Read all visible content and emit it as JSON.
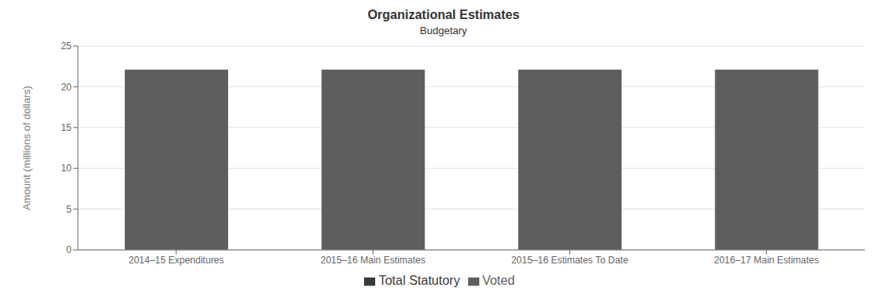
{
  "chart_data": {
    "type": "bar",
    "title": "Organizational Estimates",
    "subtitle": "Budgetary",
    "ylabel": "Amount (millions of dollars)",
    "categories": [
      "2014–15 Expenditures",
      "2015–16 Main Estimates",
      "2015–16 Estimates To Date",
      "2016–17 Main Estimates"
    ],
    "series": [
      {
        "name": "Total Statutory",
        "color": "#3a3a3a",
        "values": [
          0.05,
          0.05,
          0.05,
          0.05
        ]
      },
      {
        "name": "Voted",
        "color": "#5e5e5e",
        "values": [
          22.05,
          22.05,
          22.05,
          22.05
        ]
      }
    ],
    "stacked": true,
    "ylim": [
      0,
      25
    ],
    "yticks": [
      0,
      5,
      10,
      15,
      20,
      25
    ],
    "grid": true,
    "legend": "bottom"
  }
}
